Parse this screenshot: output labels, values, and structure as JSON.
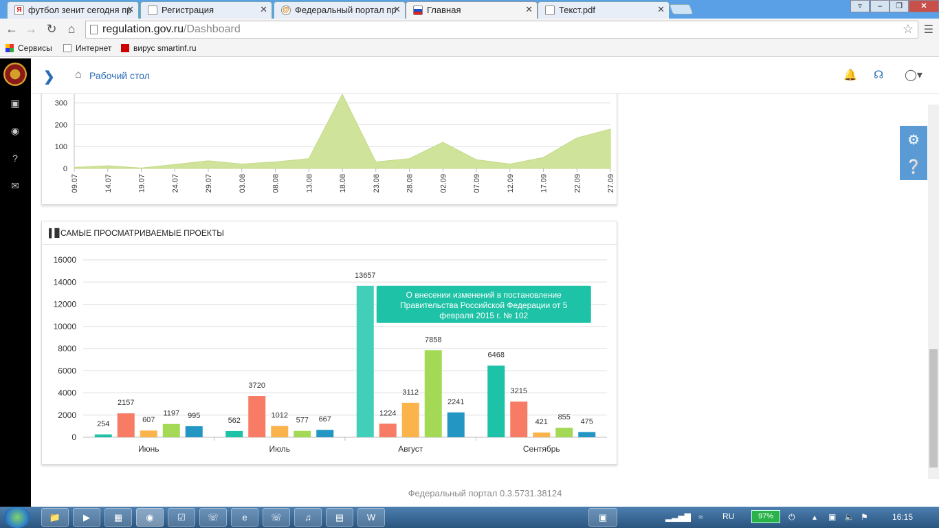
{
  "browser": {
    "tabs": [
      {
        "title": "футбол зенит сегодня пр",
        "favicon": "yandex-icon",
        "active": false
      },
      {
        "title": "Регистрация",
        "favicon": "page-icon",
        "active": false
      },
      {
        "title": "Федеральный портал пр",
        "favicon": "at-icon",
        "active": false
      },
      {
        "title": "Главная",
        "favicon": "portal-icon",
        "active": true
      },
      {
        "title": "Текст.pdf",
        "favicon": "page-icon",
        "active": false
      }
    ],
    "tab_close": "✕",
    "url_host": "regulation.gov.ru",
    "url_path": "/Dashboard",
    "bookmarks": [
      {
        "label": "Сервисы",
        "icon": "apps-icon"
      },
      {
        "label": "Интернет",
        "icon": "page-icon"
      },
      {
        "label": "вирус smartinf.ru",
        "icon": "kaspersky-icon"
      }
    ]
  },
  "header": {
    "breadcrumb": "Рабочий стол"
  },
  "area_chart": {
    "x_ticks": [
      "09.07",
      "14.07",
      "19.07",
      "24.07",
      "29.07",
      "03.08",
      "08.08",
      "13.08",
      "18.08",
      "23.08",
      "28.08",
      "02.09",
      "07.09",
      "12.09",
      "17.09",
      "22.09",
      "27.09"
    ],
    "y_ticks": [
      "0",
      "100",
      "200",
      "300"
    ],
    "fill_color": "#cfe39a"
  },
  "chart_data": [
    {
      "type": "area",
      "x": [
        "09.07",
        "14.07",
        "19.07",
        "24.07",
        "29.07",
        "03.08",
        "08.08",
        "13.08",
        "18.08",
        "23.08",
        "28.08",
        "02.09",
        "07.09",
        "12.09",
        "17.09",
        "22.09",
        "27.09"
      ],
      "series": [
        {
          "values": [
            5,
            12,
            2,
            18,
            35,
            20,
            30,
            45,
            340,
            30,
            45,
            120,
            40,
            20,
            50,
            140,
            180
          ]
        }
      ],
      "ylim": [
        0,
        340
      ]
    },
    {
      "type": "bar",
      "title": "САМЫЕ ПРОСМАТРИВАЕМЫЕ ПРОЕКТЫ",
      "categories": [
        "Июнь",
        "Июль",
        "Август",
        "Сентябрь"
      ],
      "series": [
        {
          "values": [
            254,
            562,
            13657,
            6468
          ],
          "color": "#1ec2a6"
        },
        {
          "values": [
            2157,
            3720,
            1224,
            3215
          ],
          "color": "#f77b65"
        },
        {
          "values": [
            607,
            1012,
            3112,
            421
          ],
          "color": "#fbb44c"
        },
        {
          "values": [
            1197,
            577,
            7858,
            855
          ],
          "color": "#a3d955"
        },
        {
          "values": [
            995,
            667,
            2241,
            475
          ],
          "color": "#2396c4"
        }
      ],
      "y_ticks": [
        "0",
        "2000",
        "4000",
        "6000",
        "8000",
        "10000",
        "12000",
        "14000",
        "16000"
      ],
      "ylim": [
        0,
        16000
      ],
      "tooltip": "О внесении изменений в постановление Правительства Российской Федерации от 5 февраля 2015 г. № 102",
      "highlight_color": "#41cfb9"
    }
  ],
  "footer": {
    "text": "Федеральный портал 0.3.5731.38124"
  },
  "taskbar": {
    "language": "RU",
    "battery": "97%",
    "clock": "16:15"
  }
}
